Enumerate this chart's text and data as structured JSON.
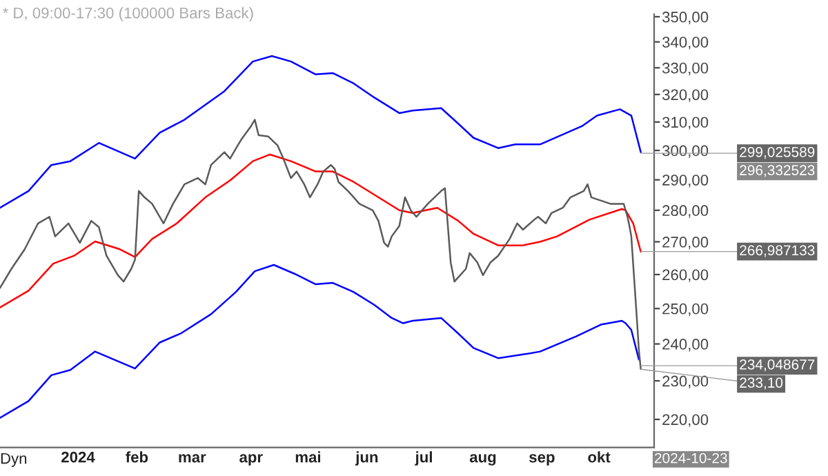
{
  "chart_data": {
    "type": "line",
    "title": "* D, 09:00-17:30 (100000 Bars Back)",
    "log": "y",
    "grid": false,
    "legend": false,
    "line_style": "solid",
    "marker": "none",
    "xlim": [
      "2023-11-21",
      "2024-10-30"
    ],
    "xticks": [
      {
        "value": "2024-01-01",
        "label": "2024"
      },
      {
        "value": "2024-02-01",
        "label": "feb"
      },
      {
        "value": "2024-03-01",
        "label": "mar"
      },
      {
        "value": "2024-04-01",
        "label": "apr"
      },
      {
        "value": "2024-05-01",
        "label": "mai"
      },
      {
        "value": "2024-06-01",
        "label": "jun"
      },
      {
        "value": "2024-07-01",
        "label": "jul"
      },
      {
        "value": "2024-08-01",
        "label": "aug"
      },
      {
        "value": "2024-09-01",
        "label": "sep"
      },
      {
        "value": "2024-10-01",
        "label": "okt"
      }
    ],
    "ylim": [
      213,
      351
    ],
    "yticks": [
      {
        "value": 220,
        "label": "220,00"
      },
      {
        "value": 230,
        "label": "230,00"
      },
      {
        "value": 240,
        "label": "240,00"
      },
      {
        "value": 250,
        "label": "250,00"
      },
      {
        "value": 260,
        "label": "260,00"
      },
      {
        "value": 270,
        "label": "270,00"
      },
      {
        "value": 280,
        "label": "280,00"
      },
      {
        "value": 290,
        "label": "290,00"
      },
      {
        "value": 300,
        "label": "300,00"
      },
      {
        "value": 310,
        "label": "310,00"
      },
      {
        "value": 320,
        "label": "320,00"
      },
      {
        "value": 330,
        "label": "330,00"
      },
      {
        "value": 340,
        "label": "340,00"
      },
      {
        "value": 350,
        "label": "350,00"
      }
    ],
    "series": [
      {
        "color": "#0000ff",
        "x": [
          "2023-11-21",
          "2023-12-06",
          "2023-12-18",
          "2023-12-28",
          "2024-01-12",
          "2024-01-31",
          "2024-02-13",
          "2024-02-26",
          "2024-03-18",
          "2024-04-02",
          "2024-04-12",
          "2024-04-22",
          "2024-05-05",
          "2024-05-14",
          "2024-05-25",
          "2024-06-05",
          "2024-06-18",
          "2024-06-25",
          "2024-07-10",
          "2024-07-19",
          "2024-07-27",
          "2024-08-09",
          "2024-08-18",
          "2024-08-31",
          "2024-09-22",
          "2024-09-30",
          "2024-10-12",
          "2024-10-18",
          "2024-10-23"
        ],
        "values": [
          280.8,
          286.3,
          295.0,
          296.3,
          302.6,
          297.2,
          306.2,
          310.8,
          321.2,
          332.4,
          334.5,
          332.4,
          327.5,
          328.0,
          324.1,
          318.8,
          313.2,
          314.1,
          315.0,
          309.4,
          304.4,
          300.8,
          302.1,
          302.1,
          308.5,
          312.3,
          314.6,
          312.3,
          299.4
        ]
      },
      {
        "color": "#0000ff",
        "x": [
          "2023-11-21",
          "2023-12-06",
          "2023-12-18",
          "2023-12-28",
          "2024-01-10",
          "2024-01-31",
          "2024-02-13",
          "2024-02-24",
          "2024-03-11",
          "2024-03-24",
          "2024-04-03",
          "2024-04-13",
          "2024-04-24",
          "2024-05-05",
          "2024-05-14",
          "2024-05-25",
          "2024-06-05",
          "2024-06-14",
          "2024-06-20",
          "2024-06-25",
          "2024-07-10",
          "2024-07-19",
          "2024-07-27",
          "2024-08-09",
          "2024-08-22",
          "2024-08-31",
          "2024-09-19",
          "2024-10-02",
          "2024-10-13",
          "2024-10-15",
          "2024-10-18",
          "2024-10-22"
        ],
        "values": [
          220.4,
          224.7,
          231.5,
          232.9,
          237.9,
          233.3,
          240.4,
          242.9,
          248.4,
          254.8,
          261.0,
          262.9,
          260.2,
          257.1,
          257.5,
          254.8,
          251.0,
          247.3,
          245.8,
          246.5,
          247.3,
          242.9,
          238.9,
          236.1,
          237.1,
          237.9,
          242.1,
          245.4,
          246.5,
          245.8,
          243.9,
          235.7
        ]
      },
      {
        "color": "#ff0000",
        "x": [
          "2023-11-21",
          "2023-12-06",
          "2023-12-19",
          "2023-12-30",
          "2024-01-10",
          "2024-01-23",
          "2024-01-31",
          "2024-02-09",
          "2024-02-22",
          "2024-03-08",
          "2024-03-21",
          "2024-04-02",
          "2024-04-11",
          "2024-04-22",
          "2024-05-05",
          "2024-05-14",
          "2024-05-25",
          "2024-06-05",
          "2024-06-18",
          "2024-06-25",
          "2024-07-08",
          "2024-07-19",
          "2024-07-27",
          "2024-08-09",
          "2024-08-22",
          "2024-08-31",
          "2024-09-09",
          "2024-09-26",
          "2024-10-13",
          "2024-10-15",
          "2024-10-19",
          "2024-10-23"
        ],
        "values": [
          250.3,
          255.2,
          263.3,
          265.7,
          270.1,
          267.7,
          265.3,
          270.9,
          275.8,
          284.2,
          289.8,
          296.3,
          298.6,
          296.3,
          292.8,
          292.8,
          289.3,
          285.0,
          280.0,
          279.1,
          280.8,
          276.6,
          272.5,
          268.9,
          268.9,
          270.0,
          271.7,
          277.0,
          280.4,
          280.0,
          275.8,
          266.9
        ]
      },
      {
        "color": "#5a5a5a",
        "x": [
          "2023-11-21",
          "2023-11-27",
          "2023-12-04",
          "2023-12-11",
          "2023-12-17",
          "2023-12-20",
          "2023-12-27",
          "2024-01-02",
          "2024-01-08",
          "2024-01-12",
          "2024-01-16",
          "2024-01-22",
          "2024-01-25",
          "2024-01-29",
          "2024-01-31",
          "2024-02-02",
          "2024-02-05",
          "2024-02-09",
          "2024-02-15",
          "2024-02-20",
          "2024-02-26",
          "2024-03-04",
          "2024-03-08",
          "2024-03-11",
          "2024-03-18",
          "2024-03-21",
          "2024-03-25",
          "2024-03-27",
          "2024-04-01",
          "2024-04-03",
          "2024-04-05",
          "2024-04-10",
          "2024-04-15",
          "2024-04-18",
          "2024-04-22",
          "2024-04-25",
          "2024-04-29",
          "2024-05-02",
          "2024-05-06",
          "2024-05-09",
          "2024-05-13",
          "2024-05-15",
          "2024-05-17",
          "2024-05-22",
          "2024-05-28",
          "2024-06-04",
          "2024-06-07",
          "2024-06-10",
          "2024-06-12",
          "2024-06-14",
          "2024-06-18",
          "2024-06-21",
          "2024-06-24",
          "2024-06-27",
          "2024-07-03",
          "2024-07-10",
          "2024-07-12",
          "2024-07-15",
          "2024-07-17",
          "2024-07-23",
          "2024-07-25",
          "2024-07-29",
          "2024-08-01",
          "2024-08-05",
          "2024-08-09",
          "2024-08-15",
          "2024-08-19",
          "2024-08-22",
          "2024-08-28",
          "2024-08-30",
          "2024-09-03",
          "2024-09-06",
          "2024-09-12",
          "2024-09-16",
          "2024-09-23",
          "2024-09-25",
          "2024-09-27",
          "2024-10-07",
          "2024-10-14",
          "2024-10-16",
          "2024-10-17",
          "2024-10-18",
          "2024-10-21",
          "2024-10-22",
          "2024-10-23"
        ],
        "values": [
          256.0,
          261.7,
          267.7,
          275.8,
          277.9,
          271.7,
          275.8,
          269.7,
          276.6,
          274.6,
          265.7,
          259.8,
          257.9,
          261.7,
          264.5,
          286.3,
          284.2,
          282.1,
          275.8,
          282.1,
          288.5,
          290.6,
          288.5,
          295.0,
          299.4,
          297.2,
          301.7,
          303.9,
          308.5,
          310.8,
          305.3,
          304.9,
          301.7,
          297.2,
          290.6,
          292.8,
          288.5,
          284.2,
          288.5,
          292.8,
          295.0,
          293.7,
          289.3,
          286.3,
          282.1,
          280.0,
          276.6,
          269.7,
          268.5,
          271.7,
          275.0,
          284.2,
          280.0,
          277.9,
          282.1,
          286.3,
          287.2,
          263.7,
          257.9,
          261.7,
          266.5,
          263.7,
          259.8,
          263.7,
          265.7,
          270.9,
          275.8,
          273.8,
          277.0,
          277.9,
          275.8,
          279.1,
          280.8,
          284.2,
          286.3,
          288.5,
          284.2,
          282.1,
          282.1,
          277.9,
          275.0,
          271.7,
          246.5,
          238.2,
          233.1
        ]
      }
    ],
    "annotations": [
      {
        "text": "299,025589",
        "x": "2024-10-23",
        "y": 299.03
      },
      {
        "text": "266,987133",
        "x": "2024-10-23",
        "y": 266.99
      },
      {
        "text": "234,048677",
        "x": "2024-10-23",
        "y": 234.05
      },
      {
        "text": "233,10",
        "x": "2024-10-23",
        "y": 233.1
      },
      "296,332523",
      "2024-10-23",
      "Dyn"
    ]
  }
}
